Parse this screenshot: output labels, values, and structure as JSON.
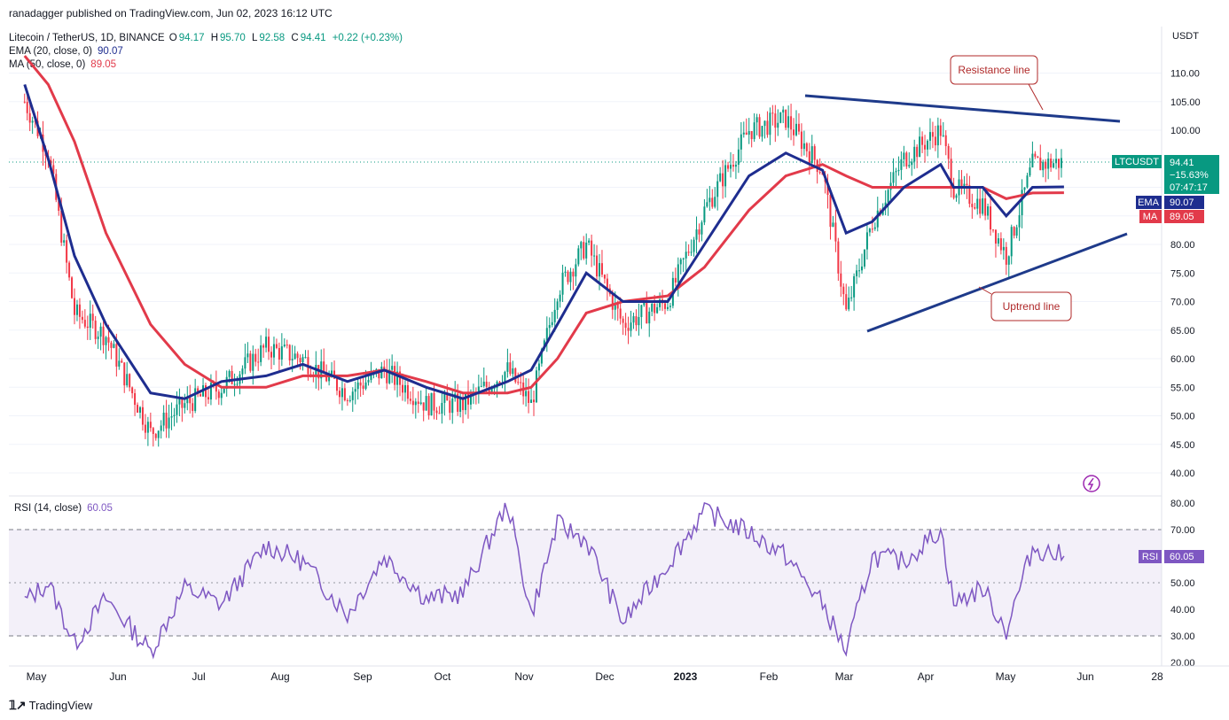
{
  "header": {
    "published": "ranadagger published on TradingView.com, Jun 02, 2023 16:12 UTC"
  },
  "legend": {
    "symbol": "Litecoin / TetherUS, 1D, BINANCE",
    "o_label": "O",
    "o": "94.17",
    "h_label": "H",
    "h": "95.70",
    "l_label": "L",
    "l": "92.58",
    "c_label": "C",
    "c": "94.41",
    "change": "+0.22 (+0.23%)",
    "ema_label": "EMA (20, close, 0)",
    "ema_value": "90.07",
    "ma_label": "MA (50, close, 0)",
    "ma_value": "89.05"
  },
  "price_axis": {
    "currency": "USDT",
    "ticks": [
      "110.00",
      "105.00",
      "100.00",
      "95.00",
      "90.00",
      "85.00",
      "80.00",
      "75.00",
      "70.00",
      "65.00",
      "60.00",
      "55.00",
      "50.00",
      "45.00",
      "40.00"
    ]
  },
  "price_tags": {
    "symbol": "LTCUSDT",
    "last": "94.41",
    "change_pct": "−15.63%",
    "countdown": "07:47:17",
    "ema_label": "EMA",
    "ema": "90.07",
    "ma_label": "MA",
    "ma": "89.05",
    "rsi_label": "RSI",
    "rsi": "60.05"
  },
  "annotations": {
    "resistance": "Resistance line",
    "uptrend": "Uptrend line"
  },
  "rsi": {
    "label": "RSI (14, close)",
    "value": "60.05",
    "ticks": [
      "80.00",
      "70.00",
      "60.00",
      "50.00",
      "40.00",
      "30.00",
      "20.00"
    ]
  },
  "time_axis": [
    "May",
    "Jun",
    "Jul",
    "Aug",
    "Sep",
    "Oct",
    "Nov",
    "Dec",
    "2023",
    "Feb",
    "Mar",
    "Apr",
    "May",
    "Jun",
    "28"
  ],
  "footer": {
    "brand": "TradingView"
  },
  "colors": {
    "up": "#089981",
    "down": "#f23645",
    "ema": "#1e2d8f",
    "ma": "#e23a4a",
    "rsi": "#7e57c2",
    "trendline": "#1e3a8a",
    "annotation": "#b02a2a"
  },
  "chart_data": [
    {
      "type": "line",
      "title": "Litecoin / TetherUS, 1D, BINANCE",
      "ylabel": "USDT",
      "ylim": [
        37,
        115
      ],
      "x": [
        "2022-05-01",
        "2022-05-10",
        "2022-05-20",
        "2022-06-01",
        "2022-06-18",
        "2022-07-01",
        "2022-07-15",
        "2022-08-01",
        "2022-08-15",
        "2022-09-01",
        "2022-09-15",
        "2022-10-01",
        "2022-10-15",
        "2022-11-01",
        "2022-11-10",
        "2022-11-20",
        "2022-12-01",
        "2022-12-15",
        "2023-01-01",
        "2023-01-15",
        "2023-02-01",
        "2023-02-15",
        "2023-03-01",
        "2023-03-10",
        "2023-03-20",
        "2023-04-01",
        "2023-04-15",
        "2023-04-20",
        "2023-05-01",
        "2023-05-10",
        "2023-05-20",
        "2023-06-01"
      ],
      "series": [
        {
          "name": "LTCUSDT",
          "values": [
            105,
            96,
            68,
            64,
            47,
            52,
            55,
            62,
            60,
            54,
            58,
            52,
            52,
            58,
            52,
            72,
            80,
            66,
            70,
            86,
            100,
            102,
            93,
            68,
            84,
            95,
            100,
            90,
            87,
            78,
            94,
            94.41
          ]
        },
        {
          "name": "EMA",
          "values": [
            108,
            95,
            78,
            66,
            54,
            53,
            56,
            57,
            59,
            56,
            58,
            55,
            53,
            56,
            58,
            66,
            75,
            70,
            70,
            80,
            92,
            96,
            93,
            82,
            84,
            90,
            94,
            90,
            90,
            85,
            90,
            90.07
          ]
        },
        {
          "name": "MA",
          "values": [
            113,
            108,
            98,
            82,
            66,
            59,
            55,
            55,
            57,
            57,
            58,
            56,
            54,
            54,
            55,
            60,
            68,
            70,
            71,
            76,
            86,
            92,
            94,
            92,
            90,
            90,
            90,
            90,
            90,
            88,
            89,
            89.05
          ]
        }
      ]
    },
    {
      "type": "line",
      "title": "RSI (14, close)",
      "ylim": [
        20,
        80
      ],
      "x": [
        "2022-05-01",
        "2022-05-10",
        "2022-05-20",
        "2022-06-01",
        "2022-06-18",
        "2022-07-01",
        "2022-07-15",
        "2022-08-01",
        "2022-08-15",
        "2022-09-01",
        "2022-09-15",
        "2022-10-01",
        "2022-10-15",
        "2022-11-01",
        "2022-11-10",
        "2022-11-20",
        "2022-12-01",
        "2022-12-15",
        "2023-01-01",
        "2023-01-15",
        "2023-02-01",
        "2023-02-15",
        "2023-03-01",
        "2023-03-10",
        "2023-03-20",
        "2023-04-01",
        "2023-04-15",
        "2023-04-20",
        "2023-05-01",
        "2023-05-10",
        "2023-05-20",
        "2023-06-01"
      ],
      "series": [
        {
          "name": "RSI",
          "values": [
            43,
            50,
            27,
            44,
            24,
            48,
            42,
            64,
            58,
            38,
            60,
            44,
            46,
            80,
            38,
            72,
            66,
            35,
            57,
            77,
            69,
            60,
            42,
            24,
            60,
            58,
            70,
            42,
            48,
            32,
            63,
            60.05
          ]
        }
      ]
    }
  ]
}
